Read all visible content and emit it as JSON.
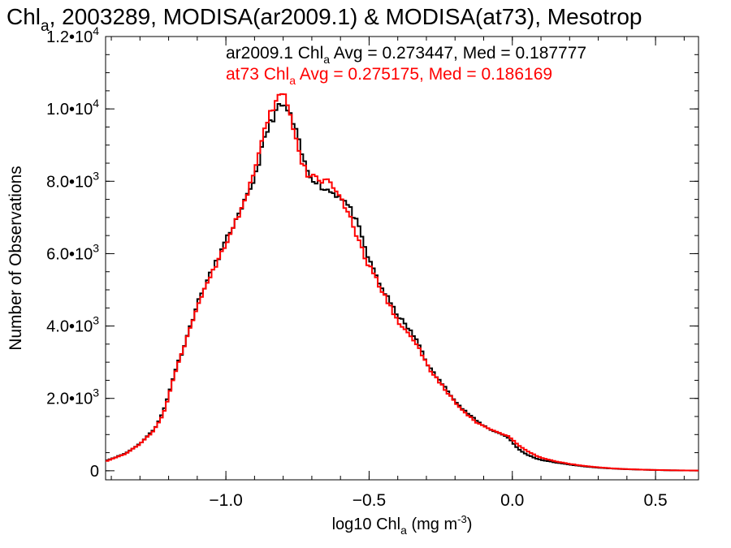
{
  "chart_data": {
    "type": "line",
    "title": {
      "pre": "Chl",
      "sub": "a",
      "post": ", 2003289, MODISA(ar2009.1) & MODISA(at73), Mesotrop"
    },
    "xlabel": {
      "pre": "log10 Chl",
      "sub": "a",
      "mid": " (mg m",
      "sup": "-3",
      "post": ")"
    },
    "ylabel": "Number of Observations",
    "xlim": [
      -1.42,
      0.65
    ],
    "ylim": [
      -250,
      12000
    ],
    "x_ticks": [
      -1.0,
      -0.5,
      0.0,
      0.5
    ],
    "x_tick_labels": [
      "−1.0",
      "−0.5",
      "0.0",
      "0.5"
    ],
    "x_minor_step": 0.1,
    "y_ticks": [
      {
        "value": 0,
        "mant": "0",
        "exp": ""
      },
      {
        "value": 2000,
        "mant": "2.0•10",
        "exp": "3"
      },
      {
        "value": 4000,
        "mant": "4.0•10",
        "exp": "3"
      },
      {
        "value": 6000,
        "mant": "6.0•10",
        "exp": "3"
      },
      {
        "value": 8000,
        "mant": "8.0•10",
        "exp": "3"
      },
      {
        "value": 10000,
        "mant": "1.0•10",
        "exp": "4"
      },
      {
        "value": 12000,
        "mant": "1.2•10",
        "exp": "4"
      }
    ],
    "y_minor_step": 500,
    "grid": false,
    "step_width": 0.01,
    "series": [
      {
        "name": "ar2009.1",
        "color": "#000000",
        "legend": {
          "pre": "ar2009.1 Chl",
          "sub": "a",
          "post": " Avg = 0.273447, Med = 0.187777"
        },
        "points": [
          [
            -1.42,
            280
          ],
          [
            -1.4,
            330
          ],
          [
            -1.35,
            480
          ],
          [
            -1.3,
            750
          ],
          [
            -1.25,
            1150
          ],
          [
            -1.22,
            1600
          ],
          [
            -1.2,
            2100
          ],
          [
            -1.18,
            2700
          ],
          [
            -1.15,
            3350
          ],
          [
            -1.12,
            4100
          ],
          [
            -1.1,
            4600
          ],
          [
            -1.08,
            5000
          ],
          [
            -1.05,
            5500
          ],
          [
            -1.02,
            6000
          ],
          [
            -1.0,
            6350
          ],
          [
            -0.98,
            6700
          ],
          [
            -0.95,
            7100
          ],
          [
            -0.92,
            7700
          ],
          [
            -0.9,
            8100
          ],
          [
            -0.88,
            8700
          ],
          [
            -0.86,
            9300
          ],
          [
            -0.84,
            9700
          ],
          [
            -0.82,
            10000
          ],
          [
            -0.8,
            10100
          ],
          [
            -0.78,
            9900
          ],
          [
            -0.76,
            9500
          ],
          [
            -0.74,
            8900
          ],
          [
            -0.72,
            8350
          ],
          [
            -0.7,
            8100
          ],
          [
            -0.68,
            8000
          ],
          [
            -0.66,
            7800
          ],
          [
            -0.64,
            7750
          ],
          [
            -0.62,
            7650
          ],
          [
            -0.6,
            7600
          ],
          [
            -0.58,
            7400
          ],
          [
            -0.56,
            7150
          ],
          [
            -0.54,
            6800
          ],
          [
            -0.52,
            6300
          ],
          [
            -0.5,
            5800
          ],
          [
            -0.48,
            5500
          ],
          [
            -0.46,
            5100
          ],
          [
            -0.44,
            4850
          ],
          [
            -0.42,
            4550
          ],
          [
            -0.4,
            4300
          ],
          [
            -0.38,
            4100
          ],
          [
            -0.35,
            3800
          ],
          [
            -0.32,
            3400
          ],
          [
            -0.3,
            3000
          ],
          [
            -0.28,
            2750
          ],
          [
            -0.25,
            2450
          ],
          [
            -0.22,
            2150
          ],
          [
            -0.2,
            1950
          ],
          [
            -0.18,
            1750
          ],
          [
            -0.15,
            1550
          ],
          [
            -0.12,
            1350
          ],
          [
            -0.1,
            1250
          ],
          [
            -0.08,
            1150
          ],
          [
            -0.05,
            1050
          ],
          [
            -0.02,
            950
          ],
          [
            0.0,
            800
          ],
          [
            0.02,
            600
          ],
          [
            0.05,
            450
          ],
          [
            0.08,
            350
          ],
          [
            0.1,
            300
          ],
          [
            0.15,
            230
          ],
          [
            0.2,
            170
          ],
          [
            0.25,
            120
          ],
          [
            0.3,
            85
          ],
          [
            0.35,
            60
          ],
          [
            0.4,
            42
          ],
          [
            0.45,
            30
          ],
          [
            0.5,
            20
          ],
          [
            0.55,
            12
          ],
          [
            0.6,
            8
          ],
          [
            0.65,
            5
          ]
        ]
      },
      {
        "name": "at73",
        "color": "#ff0000",
        "legend": {
          "pre": "at73 Chl",
          "sub": "a",
          "post": " Avg = 0.275175, Med = 0.186169"
        },
        "points": [
          [
            -1.42,
            260
          ],
          [
            -1.4,
            320
          ],
          [
            -1.35,
            470
          ],
          [
            -1.3,
            740
          ],
          [
            -1.25,
            1120
          ],
          [
            -1.22,
            1550
          ],
          [
            -1.2,
            2050
          ],
          [
            -1.18,
            2650
          ],
          [
            -1.15,
            3300
          ],
          [
            -1.12,
            4050
          ],
          [
            -1.1,
            4550
          ],
          [
            -1.08,
            4950
          ],
          [
            -1.05,
            5450
          ],
          [
            -1.02,
            5950
          ],
          [
            -1.0,
            6300
          ],
          [
            -0.98,
            6650
          ],
          [
            -0.95,
            7150
          ],
          [
            -0.92,
            7800
          ],
          [
            -0.9,
            8250
          ],
          [
            -0.88,
            8900
          ],
          [
            -0.86,
            9500
          ],
          [
            -0.84,
            9950
          ],
          [
            -0.82,
            10300
          ],
          [
            -0.8,
            10450
          ],
          [
            -0.78,
            10000
          ],
          [
            -0.76,
            9300
          ],
          [
            -0.74,
            8600
          ],
          [
            -0.72,
            8250
          ],
          [
            -0.7,
            8100
          ],
          [
            -0.68,
            8100
          ],
          [
            -0.66,
            8000
          ],
          [
            -0.64,
            8100
          ],
          [
            -0.62,
            7800
          ],
          [
            -0.6,
            7550
          ],
          [
            -0.58,
            7200
          ],
          [
            -0.56,
            6850
          ],
          [
            -0.54,
            6400
          ],
          [
            -0.52,
            6000
          ],
          [
            -0.5,
            5650
          ],
          [
            -0.48,
            5400
          ],
          [
            -0.46,
            5000
          ],
          [
            -0.44,
            4750
          ],
          [
            -0.42,
            4450
          ],
          [
            -0.4,
            4150
          ],
          [
            -0.38,
            3950
          ],
          [
            -0.35,
            3650
          ],
          [
            -0.32,
            3300
          ],
          [
            -0.3,
            2950
          ],
          [
            -0.28,
            2700
          ],
          [
            -0.25,
            2400
          ],
          [
            -0.22,
            2100
          ],
          [
            -0.2,
            1900
          ],
          [
            -0.18,
            1700
          ],
          [
            -0.15,
            1500
          ],
          [
            -0.12,
            1300
          ],
          [
            -0.1,
            1250
          ],
          [
            -0.08,
            1150
          ],
          [
            -0.05,
            1050
          ],
          [
            -0.02,
            980
          ],
          [
            0.0,
            880
          ],
          [
            0.02,
            720
          ],
          [
            0.05,
            560
          ],
          [
            0.08,
            430
          ],
          [
            0.1,
            360
          ],
          [
            0.15,
            260
          ],
          [
            0.2,
            190
          ],
          [
            0.25,
            135
          ],
          [
            0.3,
            95
          ],
          [
            0.35,
            65
          ],
          [
            0.4,
            45
          ],
          [
            0.45,
            32
          ],
          [
            0.5,
            22
          ],
          [
            0.55,
            14
          ],
          [
            0.6,
            9
          ],
          [
            0.65,
            6
          ]
        ]
      }
    ]
  }
}
